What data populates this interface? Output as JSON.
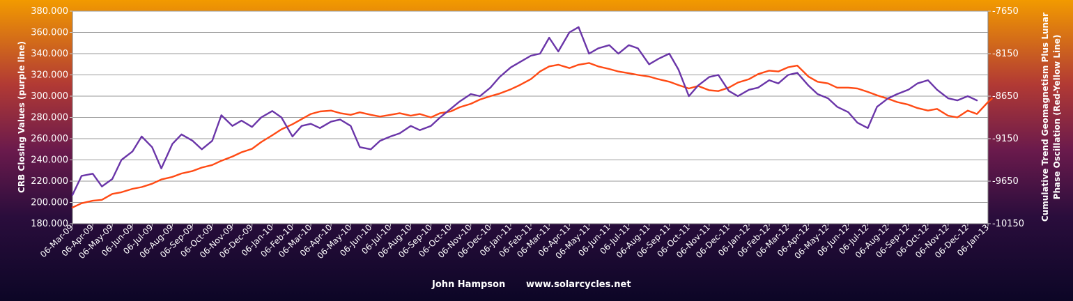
{
  "chart_data": {
    "type": "line",
    "left_axis_title": "CRB Closing Values (purple line)",
    "right_axis_title_lines": [
      "Cumulative Trend Geomagnetism Plus Lunar",
      "Phase Oscillation (Red-Yellow Line)"
    ],
    "footer": {
      "author": "John Hampson",
      "website": "www.solarcycles.net"
    },
    "y_left": {
      "min": 180,
      "max": 380,
      "ticks": [
        180,
        200,
        220,
        240,
        260,
        280,
        300,
        320,
        340,
        360,
        380
      ],
      "tick_labels": [
        "180.000",
        "200.000",
        "220.000",
        "240.000",
        "260.000",
        "280.000",
        "300.000",
        "320.000",
        "340.000",
        "360.000",
        "380.000"
      ]
    },
    "y_right": {
      "min": -10150,
      "max": -7650,
      "ticks": [
        -10150,
        -9650,
        -9150,
        -8650,
        -8150,
        -7650
      ],
      "tick_labels": [
        "-10150",
        "-9650",
        "-9150",
        "-8650",
        "-8150",
        "-7650"
      ]
    },
    "x_tick_labels": [
      "06-Mar-09",
      "06-Apr-09",
      "06-May-09",
      "06-Jun-09",
      "06-Jul-09",
      "06-Aug-09",
      "06-Sep-09",
      "06-Oct-09",
      "06-Nov-09",
      "06-Dec-09",
      "06-Jan-10",
      "06-Feb-10",
      "06-Mar-10",
      "06-Apr-10",
      "06-May-10",
      "06-Jun-10",
      "06-Jul-10",
      "06-Aug-10",
      "06-Sep-10",
      "06-Oct-10",
      "06-Nov-10",
      "06-Dec-10",
      "06-Jan-11",
      "06-Feb-11",
      "06-Mar-11",
      "06-Apr-11",
      "06-May-11",
      "06-Jun-11",
      "06-Jul-11",
      "06-Aug-11",
      "06-Sep-11",
      "06-Oct-11",
      "06-Nov-11",
      "06-Dec-11",
      "06-Jan-12",
      "06-Feb-12",
      "06-Mar-12",
      "06-Apr-12",
      "06-May-12",
      "06-Jun-12",
      "06-Jul-12",
      "06-Aug-12",
      "06-Sep-12",
      "06-Oct-12",
      "06-Nov-12",
      "06-Dec-12",
      "06-Jan-13"
    ],
    "series": [
      {
        "axis": "left",
        "color": "#6a35a8",
        "x": [
          "06-Mar-09",
          "20-Mar-09",
          "06-Apr-09",
          "20-Apr-09",
          "06-May-09",
          "20-May-09",
          "06-Jun-09",
          "20-Jun-09",
          "06-Jul-09",
          "20-Jul-09",
          "06-Aug-09",
          "20-Aug-09",
          "06-Sep-09",
          "20-Sep-09",
          "06-Oct-09",
          "20-Oct-09",
          "06-Nov-09",
          "20-Nov-09",
          "06-Dec-09",
          "20-Dec-09",
          "06-Jan-10",
          "20-Jan-10",
          "06-Feb-10",
          "20-Feb-10",
          "06-Mar-10",
          "20-Mar-10",
          "06-Apr-10",
          "20-Apr-10",
          "06-May-10",
          "20-May-10",
          "06-Jun-10",
          "20-Jun-10",
          "06-Jul-10",
          "20-Jul-10",
          "06-Aug-10",
          "20-Aug-10",
          "06-Sep-10",
          "20-Sep-10",
          "06-Oct-10",
          "20-Oct-10",
          "06-Nov-10",
          "20-Nov-10",
          "06-Dec-10",
          "20-Dec-10",
          "06-Jan-11",
          "20-Jan-11",
          "06-Feb-11",
          "20-Feb-11",
          "06-Mar-11",
          "20-Mar-11",
          "06-Apr-11",
          "20-Apr-11",
          "06-May-11",
          "20-May-11",
          "06-Jun-11",
          "20-Jun-11",
          "06-Jul-11",
          "20-Jul-11",
          "06-Aug-11",
          "20-Aug-11",
          "06-Sep-11",
          "20-Sep-11",
          "06-Oct-11",
          "20-Oct-11",
          "06-Nov-11",
          "20-Nov-11",
          "06-Dec-11",
          "20-Dec-11",
          "06-Jan-12",
          "20-Jan-12",
          "06-Feb-12",
          "20-Feb-12",
          "06-Mar-12",
          "20-Mar-12",
          "06-Apr-12",
          "20-Apr-12",
          "06-May-12",
          "20-May-12",
          "06-Jun-12",
          "20-Jun-12",
          "06-Jul-12",
          "20-Jul-12",
          "06-Aug-12",
          "20-Aug-12",
          "06-Sep-12",
          "20-Sep-12",
          "06-Oct-12",
          "20-Oct-12",
          "06-Nov-12",
          "20-Nov-12",
          "06-Dec-12",
          "20-Dec-12"
        ],
        "y": [
          207,
          225,
          227,
          215,
          222,
          240,
          248,
          262,
          252,
          232,
          255,
          264,
          258,
          250,
          258,
          282,
          272,
          277,
          271,
          280,
          286,
          280,
          262,
          272,
          274,
          270,
          276,
          278,
          272,
          252,
          250,
          258,
          262,
          265,
          272,
          268,
          272,
          280,
          288,
          295,
          302,
          300,
          308,
          318,
          327,
          332,
          338,
          340,
          355,
          342,
          360,
          365,
          340,
          345,
          348,
          340,
          348,
          345,
          330,
          335,
          340,
          325,
          300,
          310,
          318,
          320,
          305,
          300,
          306,
          308,
          315,
          312,
          320,
          322,
          310,
          302,
          298,
          290,
          285,
          275,
          270,
          290,
          298,
          302,
          306,
          312,
          315,
          306,
          298,
          296,
          300,
          296
        ]
      },
      {
        "axis": "right",
        "color": "#ff4a14",
        "x": [
          "06-Mar-09",
          "20-Mar-09",
          "06-Apr-09",
          "20-Apr-09",
          "06-May-09",
          "20-May-09",
          "06-Jun-09",
          "20-Jun-09",
          "06-Jul-09",
          "20-Jul-09",
          "06-Aug-09",
          "20-Aug-09",
          "06-Sep-09",
          "20-Sep-09",
          "06-Oct-09",
          "20-Oct-09",
          "06-Nov-09",
          "20-Nov-09",
          "06-Dec-09",
          "20-Dec-09",
          "06-Jan-10",
          "20-Jan-10",
          "06-Feb-10",
          "20-Feb-10",
          "06-Mar-10",
          "20-Mar-10",
          "06-Apr-10",
          "20-Apr-10",
          "06-May-10",
          "20-May-10",
          "06-Jun-10",
          "20-Jun-10",
          "06-Jul-10",
          "20-Jul-10",
          "06-Aug-10",
          "20-Aug-10",
          "06-Sep-10",
          "20-Sep-10",
          "06-Oct-10",
          "20-Oct-10",
          "06-Nov-10",
          "20-Nov-10",
          "06-Dec-10",
          "20-Dec-10",
          "06-Jan-11",
          "20-Jan-11",
          "06-Feb-11",
          "20-Feb-11",
          "06-Mar-11",
          "20-Mar-11",
          "06-Apr-11",
          "20-Apr-11",
          "06-May-11",
          "20-May-11",
          "06-Jun-11",
          "20-Jun-11",
          "06-Jul-11",
          "20-Jul-11",
          "06-Aug-11",
          "20-Aug-11",
          "06-Sep-11",
          "20-Sep-11",
          "06-Oct-11",
          "20-Oct-11",
          "06-Nov-11",
          "20-Nov-11",
          "06-Dec-11",
          "20-Dec-11",
          "06-Jan-12",
          "20-Jan-12",
          "06-Feb-12",
          "20-Feb-12",
          "06-Mar-12",
          "20-Mar-12",
          "06-Apr-12",
          "20-Apr-12",
          "06-May-12",
          "20-May-12",
          "06-Jun-12",
          "20-Jun-12",
          "06-Jul-12",
          "20-Jul-12",
          "06-Aug-12",
          "20-Aug-12",
          "06-Sep-12",
          "20-Sep-12",
          "06-Oct-12",
          "20-Oct-12",
          "06-Nov-12",
          "20-Nov-12",
          "06-Dec-12",
          "20-Dec-12",
          "06-Jan-13",
          "12-Jan-13"
        ],
        "y": [
          -9960,
          -9910,
          -9880,
          -9870,
          -9800,
          -9780,
          -9740,
          -9720,
          -9680,
          -9630,
          -9600,
          -9560,
          -9530,
          -9490,
          -9460,
          -9410,
          -9360,
          -9310,
          -9270,
          -9190,
          -9110,
          -9040,
          -8980,
          -8920,
          -8860,
          -8830,
          -8820,
          -8850,
          -8870,
          -8840,
          -8870,
          -8890,
          -8870,
          -8850,
          -8880,
          -8860,
          -8900,
          -8850,
          -8830,
          -8780,
          -8740,
          -8690,
          -8650,
          -8620,
          -8570,
          -8520,
          -8450,
          -8360,
          -8300,
          -8280,
          -8320,
          -8280,
          -8260,
          -8300,
          -8330,
          -8360,
          -8380,
          -8400,
          -8420,
          -8450,
          -8480,
          -8520,
          -8560,
          -8530,
          -8580,
          -8590,
          -8550,
          -8490,
          -8450,
          -8390,
          -8350,
          -8360,
          -8310,
          -8290,
          -8420,
          -8480,
          -8500,
          -8550,
          -8550,
          -8560,
          -8600,
          -8640,
          -8680,
          -8720,
          -8750,
          -8790,
          -8820,
          -8800,
          -8880,
          -8900,
          -8820,
          -8860,
          -8720,
          -8680
        ]
      }
    ],
    "grid": true,
    "colors": {
      "purple_line": "#6a35a8",
      "red_yellow_line": "#ff4a14",
      "plot_background": "#ffffff",
      "gridline": "#9a9a9a"
    }
  }
}
